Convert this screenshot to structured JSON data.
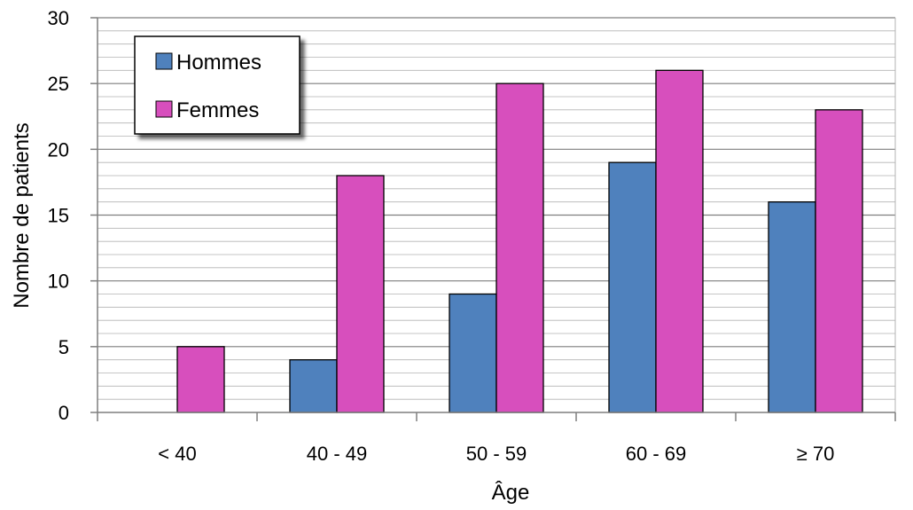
{
  "chart_data": {
    "type": "bar",
    "categories": [
      "< 40",
      "40 - 49",
      "50 - 59",
      "60 - 69",
      "≥ 70"
    ],
    "series": [
      {
        "name": "Hommes",
        "color": "#4F81BD",
        "values": [
          0,
          4,
          9,
          19,
          16
        ]
      },
      {
        "name": "Femmes",
        "color": "#D74FBD",
        "values": [
          5,
          18,
          25,
          26,
          23
        ]
      }
    ],
    "xlabel": "Âge",
    "ylabel": "Nombre de patients",
    "ylim": [
      0,
      30
    ],
    "yticks": [
      0,
      5,
      10,
      15,
      20,
      25,
      30
    ],
    "minor_grid_step": 1,
    "grid": true,
    "legend_position": "top-left"
  }
}
